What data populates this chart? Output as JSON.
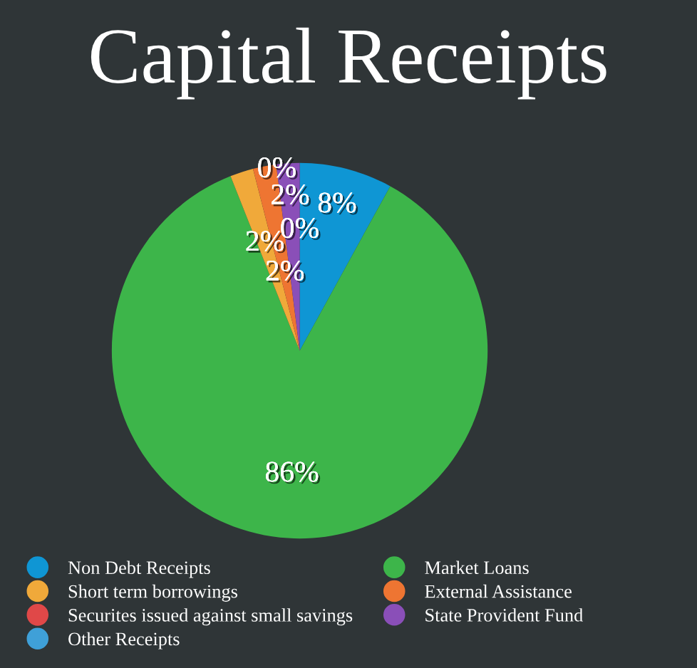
{
  "chart_data": {
    "type": "pie",
    "title": "Capital Receipts",
    "categories": [
      "Non Debt Receipts",
      "Market Loans",
      "Short term borrowings",
      "External Assistance",
      "Securites issued against small savings",
      "State Provident Fund",
      "Other Receipts"
    ],
    "values": [
      8,
      86,
      2,
      2,
      0,
      2,
      0
    ],
    "colors": [
      "#0f96d4",
      "#3db54a",
      "#f0a93a",
      "#ee7532",
      "#e04848",
      "#8a4fb8",
      "#3fa0d8"
    ],
    "value_labels": [
      "8%",
      "86%",
      "2%",
      "2%",
      "0%",
      "2%",
      "0%"
    ],
    "legend": "bottom"
  }
}
